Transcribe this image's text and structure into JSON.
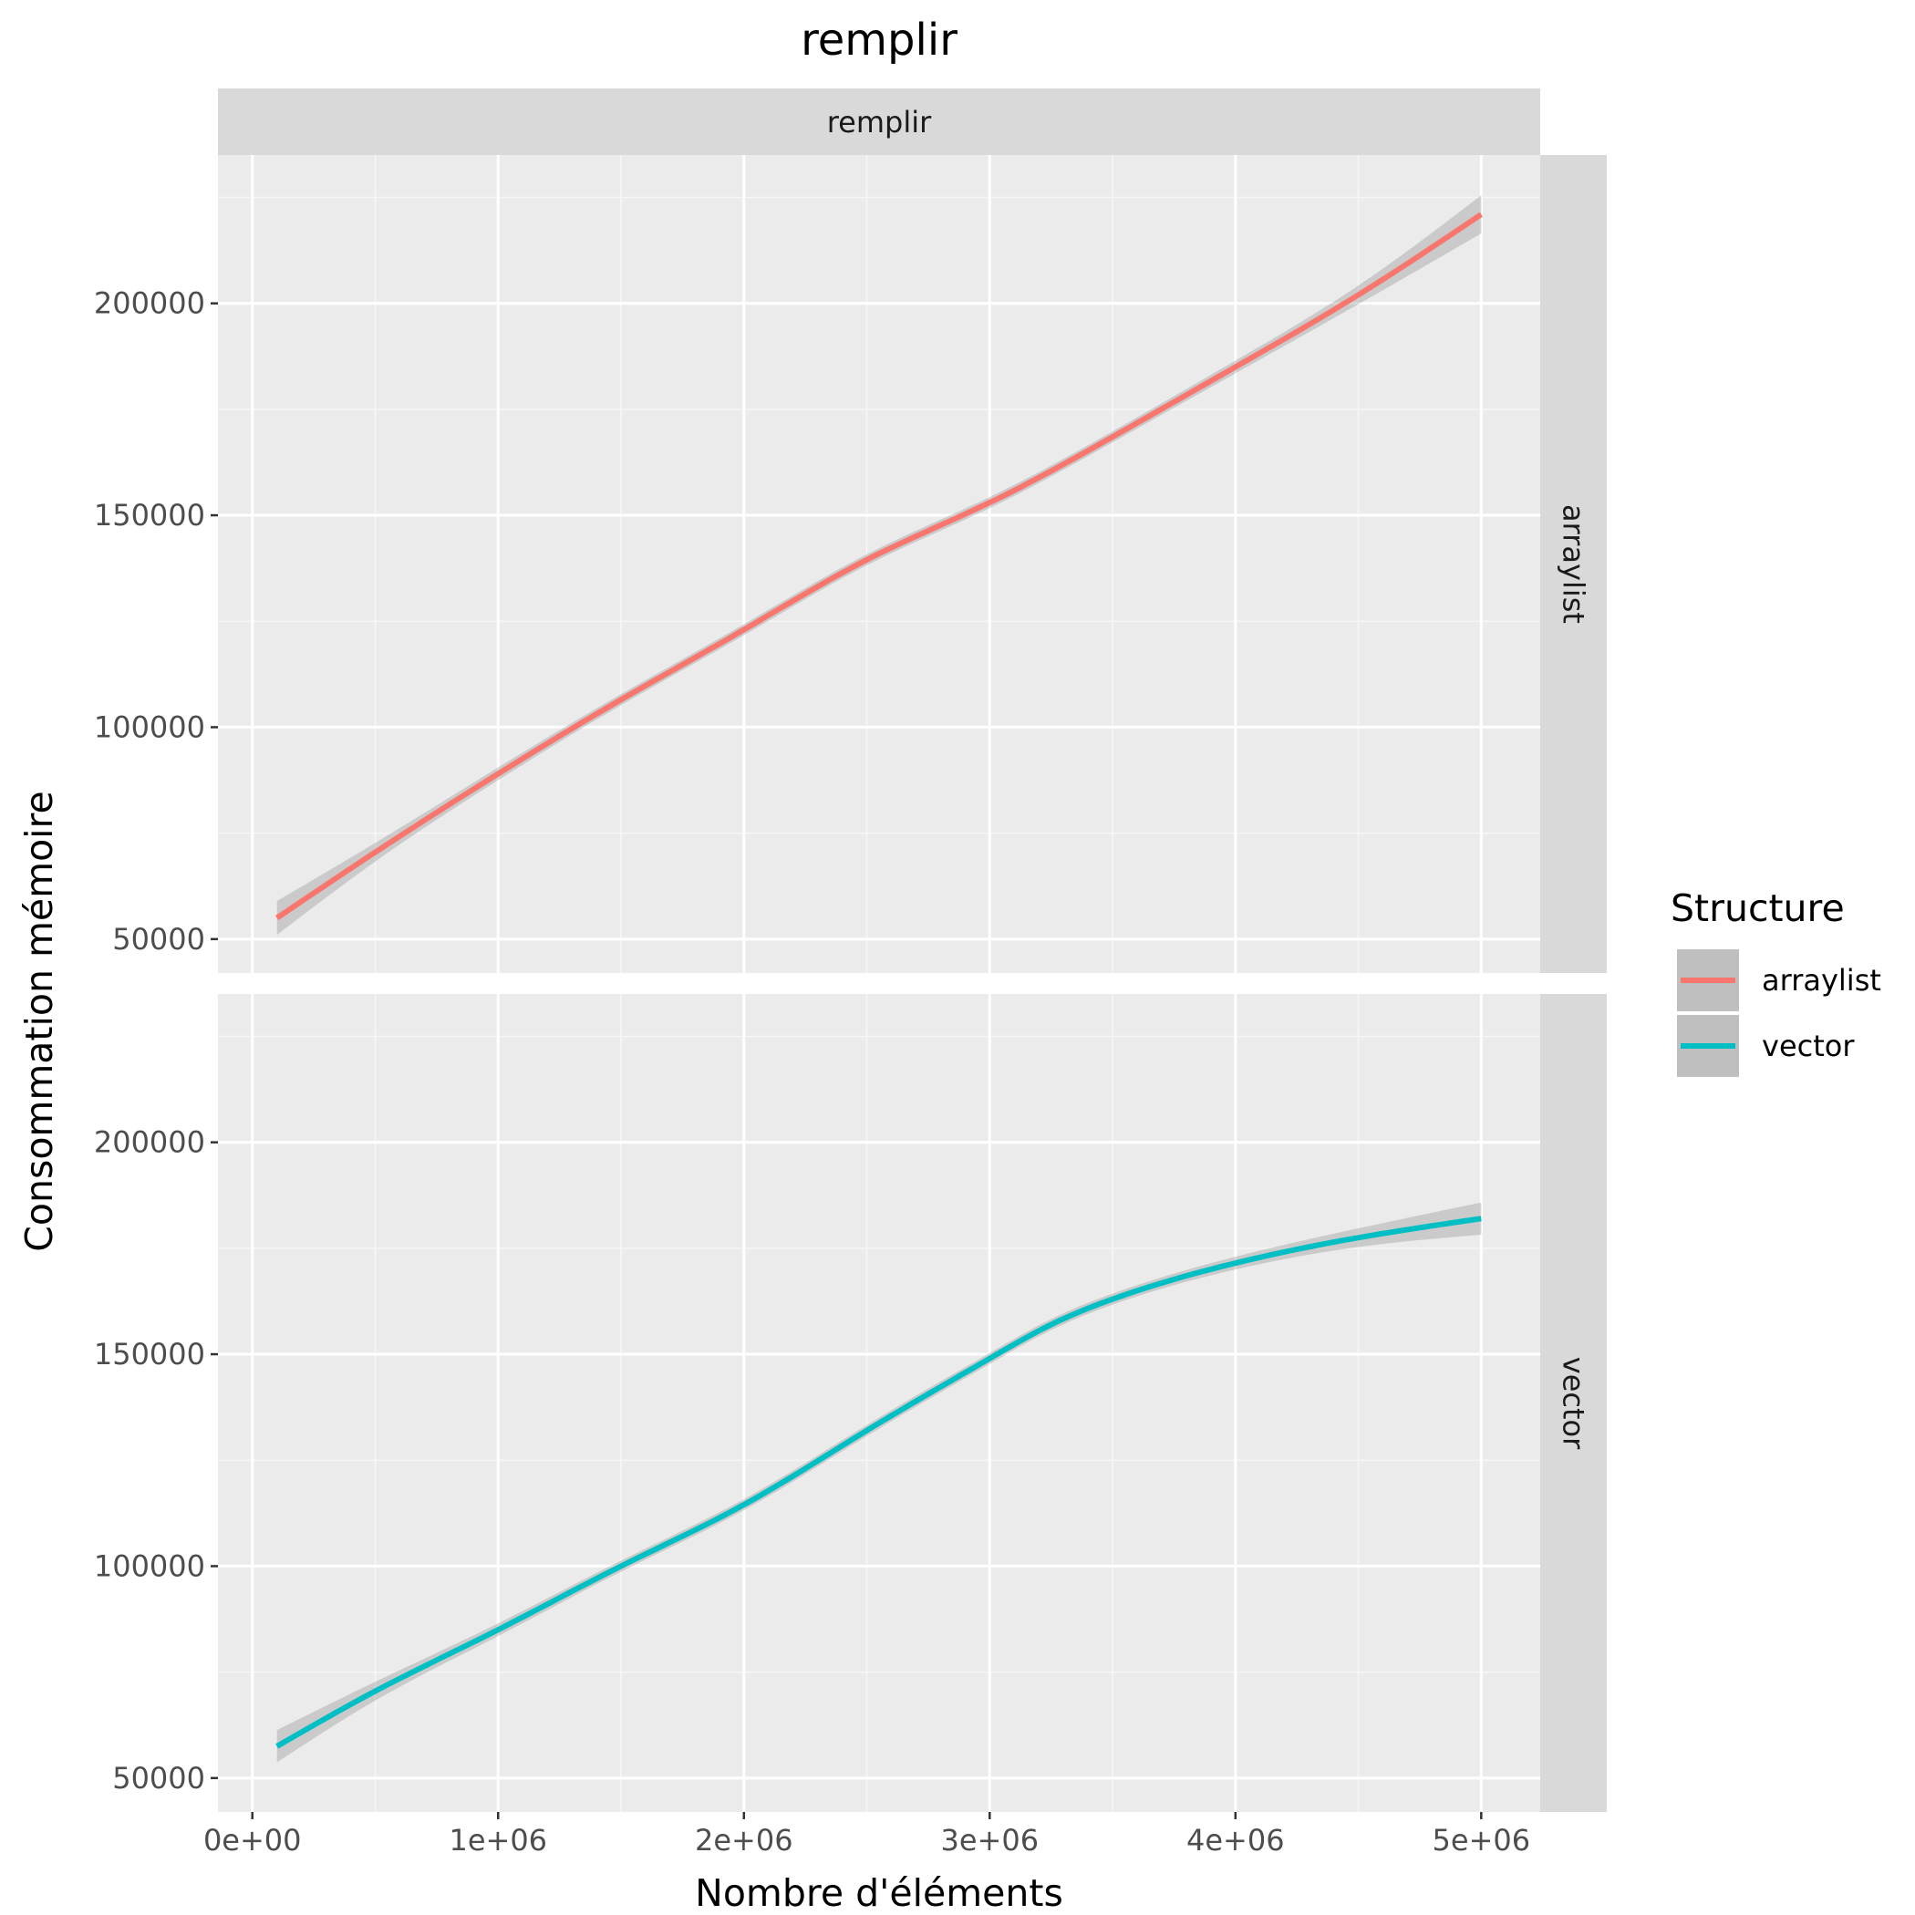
{
  "chart_data": {
    "type": "line",
    "title": "remplir",
    "facet_column_label": "remplir",
    "xlabel": "Nombre d'éléments",
    "ylabel": "Consommation mémoire",
    "xlim": [
      -140000,
      5240000
    ],
    "ylim": [
      42000,
      235000
    ],
    "x_ticks": [
      {
        "value": 0,
        "label": "0e+00"
      },
      {
        "value": 1000000,
        "label": "1e+06"
      },
      {
        "value": 2000000,
        "label": "2e+06"
      },
      {
        "value": 3000000,
        "label": "3e+06"
      },
      {
        "value": 4000000,
        "label": "4e+06"
      },
      {
        "value": 5000000,
        "label": "5e+06"
      }
    ],
    "y_ticks": [
      {
        "value": 50000,
        "label": "50000"
      },
      {
        "value": 100000,
        "label": "100000"
      },
      {
        "value": 150000,
        "label": "150000"
      },
      {
        "value": 200000,
        "label": "200000"
      }
    ],
    "grid": true,
    "smoothed_with_confidence_band": true,
    "legend": {
      "title": "Structure",
      "placement": "right",
      "entries": [
        {
          "label": "arraylist",
          "color": "#F8766D"
        },
        {
          "label": "vector",
          "color": "#00BFC4"
        }
      ]
    },
    "panels": [
      {
        "facet": "arraylist",
        "color": "#F8766D",
        "x": [
          100000,
          500000,
          1000000,
          1500000,
          2000000,
          2500000,
          3000000,
          3500000,
          4000000,
          4500000,
          5000000
        ],
        "values": [
          55000,
          70500,
          89000,
          106500,
          123000,
          139500,
          153000,
          168500,
          185000,
          202000,
          221000
        ],
        "band_halfwidth": [
          4000,
          2200,
          1500,
          1300,
          1300,
          1300,
          1300,
          1300,
          1500,
          2200,
          4500
        ]
      },
      {
        "facet": "vector",
        "color": "#00BFC4",
        "x": [
          100000,
          500000,
          1000000,
          1500000,
          2000000,
          2500000,
          3000000,
          3250000,
          3500000,
          4000000,
          4500000,
          5000000
        ],
        "values": [
          57500,
          70500,
          85000,
          100000,
          114500,
          132000,
          149000,
          157000,
          163000,
          171500,
          177500,
          182000
        ],
        "band_halfwidth": [
          3800,
          2200,
          1500,
          1300,
          1300,
          1300,
          1300,
          1300,
          1300,
          1500,
          2200,
          3800
        ]
      }
    ]
  },
  "colors": {
    "panel_background": "#EBEBEB",
    "strip_background": "#D9D9D9",
    "grid_major": "#FFFFFF",
    "grid_minor": "#F6F6F6",
    "band": "#999999"
  }
}
